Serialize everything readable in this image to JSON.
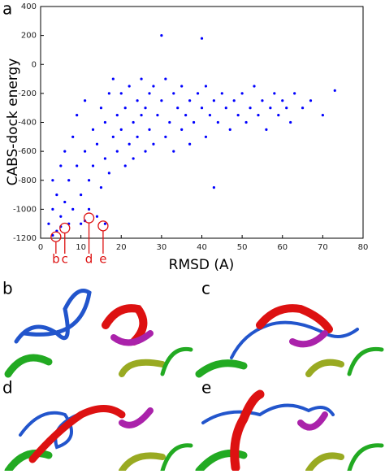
{
  "chart_data": {
    "type": "scatter",
    "panel_label": "a",
    "xlabel": "RMSD (A)",
    "ylabel": "CABS-dock energy",
    "color": "#0000ff",
    "xlim": [
      0,
      80
    ],
    "xticks": [
      0,
      10,
      20,
      30,
      40,
      50,
      60,
      70,
      80
    ],
    "ylim": [
      -1200,
      400
    ],
    "yticks": [
      -1200,
      -1000,
      -800,
      -600,
      -400,
      -200,
      0,
      200,
      400
    ],
    "x": [
      2,
      3,
      3,
      4,
      4,
      5,
      5,
      6,
      6,
      7,
      7,
      8,
      8,
      9,
      9,
      10,
      10,
      11,
      11,
      12,
      12,
      13,
      13,
      14,
      14,
      15,
      15,
      16,
      16,
      17,
      17,
      18,
      18,
      19,
      19,
      20,
      20,
      21,
      21,
      22,
      22,
      23,
      23,
      24,
      24,
      25,
      25,
      26,
      26,
      27,
      27,
      28,
      28,
      29,
      30,
      30,
      31,
      31,
      32,
      33,
      33,
      34,
      35,
      35,
      36,
      37,
      37,
      38,
      39,
      40,
      40,
      41,
      41,
      42,
      43,
      43,
      44,
      45,
      46,
      47,
      48,
      49,
      50,
      51,
      52,
      53,
      54,
      55,
      56,
      57,
      58,
      59,
      60,
      61,
      62,
      63,
      65,
      67,
      70,
      73,
      3,
      5,
      11,
      16
    ],
    "values": [
      -1100,
      -1000,
      -800,
      -1150,
      -900,
      -700,
      -1050,
      -950,
      -600,
      -1100,
      -800,
      -500,
      -1000,
      -700,
      -350,
      -900,
      -1100,
      -600,
      -250,
      -1000,
      -800,
      -450,
      -700,
      -1050,
      -550,
      -300,
      -850,
      -650,
      -400,
      -200,
      -750,
      -500,
      -100,
      -600,
      -350,
      -450,
      -200,
      -700,
      -300,
      -550,
      -150,
      -400,
      -650,
      -250,
      -500,
      -350,
      -100,
      -600,
      -300,
      -450,
      -200,
      -550,
      -150,
      -350,
      -250,
      200,
      -500,
      -100,
      -400,
      -200,
      -600,
      -300,
      -450,
      -150,
      -350,
      -250,
      -550,
      -400,
      -200,
      -300,
      180,
      -500,
      -150,
      -350,
      -250,
      -850,
      -400,
      -200,
      -300,
      -450,
      -250,
      -350,
      -200,
      -400,
      -300,
      -150,
      -350,
      -250,
      -450,
      -300,
      -200,
      -350,
      -250,
      -300,
      -400,
      -200,
      -300,
      -250,
      -350,
      -180,
      -1180,
      -1120,
      -1080,
      -1100
    ],
    "annotations": [
      {
        "label": "b",
        "x": 3.8,
        "y": -1190
      },
      {
        "label": "c",
        "x": 6,
        "y": -1130
      },
      {
        "label": "d",
        "x": 12,
        "y": -1060
      },
      {
        "label": "e",
        "x": 15.5,
        "y": -1115
      }
    ]
  },
  "panels": [
    {
      "label": "b"
    },
    {
      "label": "c"
    },
    {
      "label": "d"
    },
    {
      "label": "e"
    }
  ]
}
